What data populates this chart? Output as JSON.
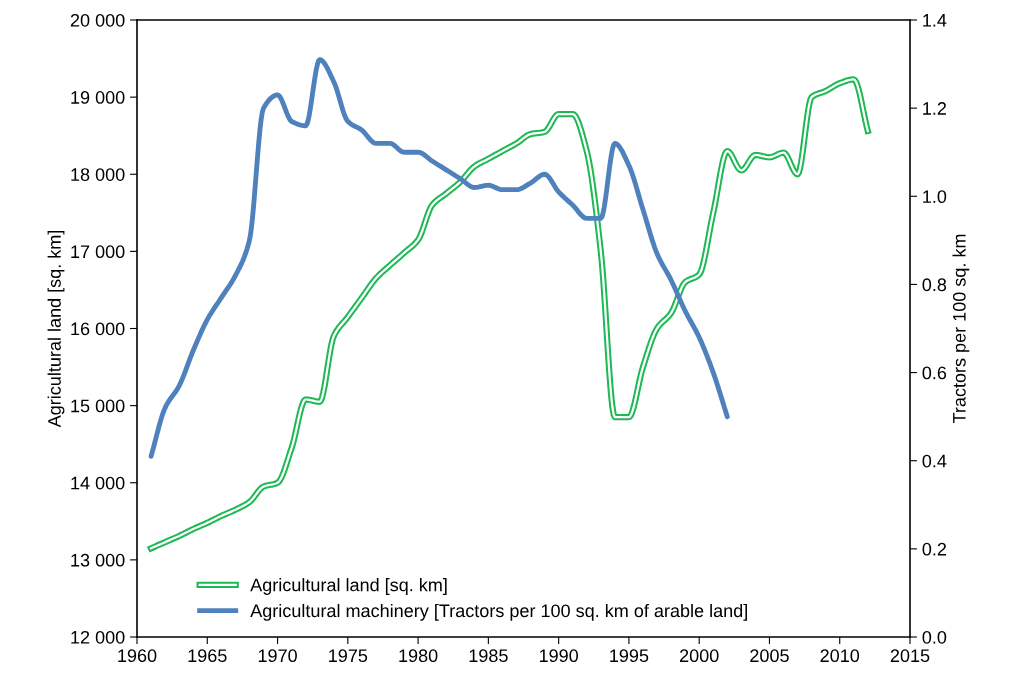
{
  "chart_data": {
    "type": "line",
    "xlabel": null,
    "ylabel": "Agricultural land [sq. km]",
    "y2label": "Tractors per 100 sq. km",
    "x": [
      1961,
      1962,
      1963,
      1964,
      1965,
      1966,
      1967,
      1968,
      1969,
      1970,
      1971,
      1972,
      1973,
      1974,
      1975,
      1976,
      1977,
      1978,
      1979,
      1980,
      1981,
      1982,
      1983,
      1984,
      1985,
      1986,
      1987,
      1988,
      1989,
      1990,
      1991,
      1992,
      1993,
      1994,
      1995,
      1996,
      1997,
      1998,
      1999,
      2000,
      2001,
      2002,
      2003,
      2004,
      2005,
      2006,
      2007,
      2008,
      2009,
      2010,
      2011,
      2012
    ],
    "series": [
      {
        "name": "Agricultural land [sq. km]",
        "color": "#1db954",
        "values": [
          13150,
          13230,
          13310,
          13400,
          13480,
          13570,
          13650,
          13750,
          13950,
          14000,
          14450,
          15080,
          15050,
          15900,
          16150,
          16400,
          16650,
          16820,
          16980,
          17150,
          17600,
          17750,
          17900,
          18100,
          18200,
          18300,
          18400,
          18520,
          18550,
          18780,
          18780,
          18300,
          17000,
          14850,
          14850,
          15500,
          16000,
          16200,
          16600,
          16700,
          17500,
          18300,
          18050,
          18250,
          18220,
          18280,
          18000,
          19000,
          19080,
          19180,
          19230,
          18560
        ]
      },
      {
        "name": "Agricultural machinery [Tractors per 100 sq. km of arable land]",
        "color": "#4f81bd",
        "axis": "y2",
        "values": [
          0.41,
          0.52,
          0.57,
          0.65,
          0.72,
          0.77,
          0.82,
          0.9,
          1.2,
          1.23,
          1.17,
          1.16,
          1.31,
          1.26,
          1.17,
          1.15,
          1.12,
          1.12,
          1.1,
          1.1,
          1.08,
          1.06,
          1.04,
          1.02,
          1.025,
          1.015,
          1.015,
          1.03,
          1.05,
          1.01,
          0.98,
          0.95,
          0.95,
          1.12,
          1.07,
          0.97,
          0.87,
          0.81,
          0.74,
          0.68,
          0.6,
          0.5,
          null,
          null,
          null,
          null,
          null,
          null,
          null,
          null,
          null,
          null
        ]
      }
    ],
    "xlim": [
      1960,
      2015
    ],
    "xticks": [
      1960,
      1965,
      1970,
      1975,
      1980,
      1985,
      1990,
      1995,
      2000,
      2005,
      2010,
      2015
    ],
    "ylim": [
      12000,
      20000
    ],
    "yticks": [
      {
        "value": 12000,
        "label": "12 000"
      },
      {
        "value": 13000,
        "label": "13 000"
      },
      {
        "value": 14000,
        "label": "14 000"
      },
      {
        "value": 15000,
        "label": "15 000"
      },
      {
        "value": 16000,
        "label": "16 000"
      },
      {
        "value": 17000,
        "label": "17 000"
      },
      {
        "value": 18000,
        "label": "18 000"
      },
      {
        "value": 19000,
        "label": "19 000"
      },
      {
        "value": 20000,
        "label": "20 000"
      }
    ],
    "y2lim": [
      0,
      1.4
    ],
    "y2ticks": [
      {
        "value": 0,
        "label": "0.0"
      },
      {
        "value": 0.2,
        "label": "0.2"
      },
      {
        "value": 0.4,
        "label": "0.4"
      },
      {
        "value": 0.6,
        "label": "0.6"
      },
      {
        "value": 0.8,
        "label": "0.8"
      },
      {
        "value": 1.0,
        "label": "1.0"
      },
      {
        "value": 1.2,
        "label": "1.2"
      },
      {
        "value": 1.4,
        "label": "1.4"
      }
    ],
    "grid": false,
    "legend": "bottom left",
    "marker": "none",
    "line_style": "solid"
  }
}
